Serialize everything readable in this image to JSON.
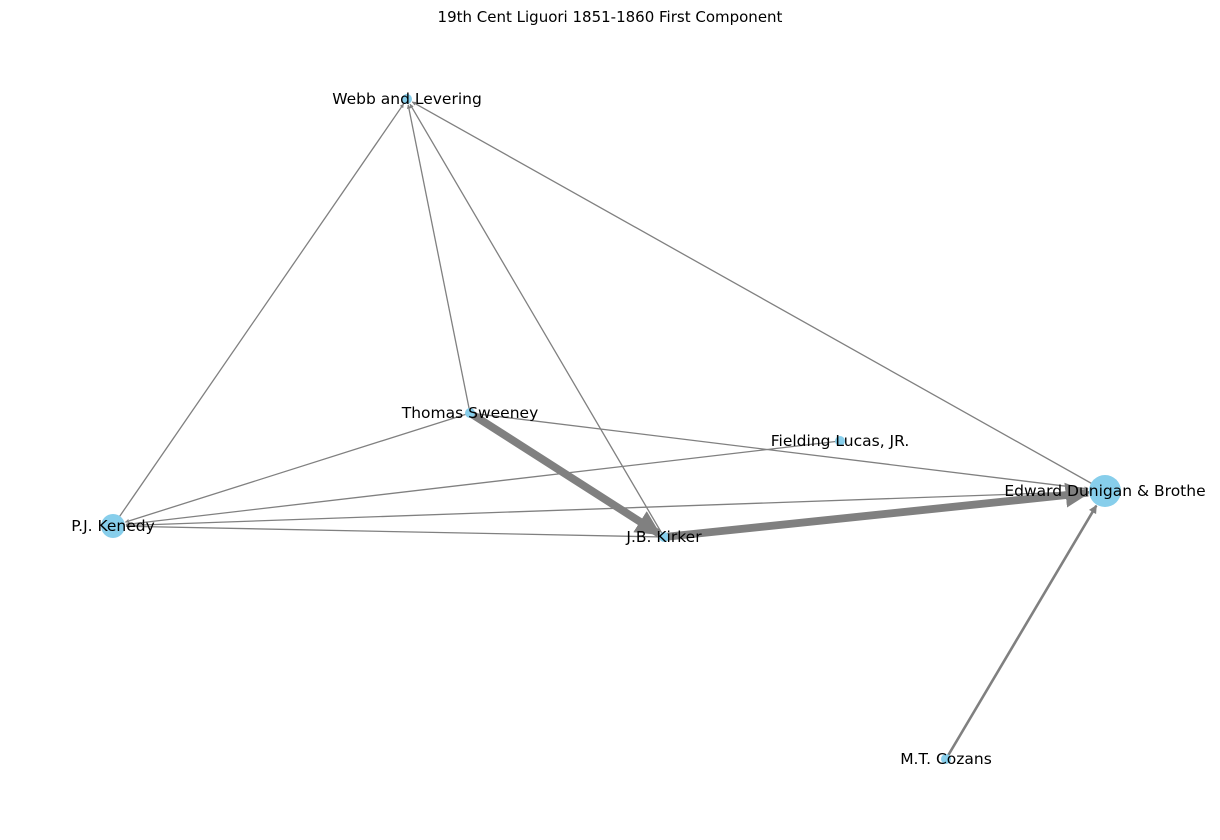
{
  "title": "19th Cent Liguori 1851-1860 First Component",
  "graph": {
    "type": "directed-network",
    "node_color": "#87ceeb",
    "edge_color": "#808080",
    "nodes": [
      {
        "id": "webb",
        "label": "Webb and Levering",
        "size": "small"
      },
      {
        "id": "sweeney",
        "label": "Thomas Sweeney",
        "size": "small"
      },
      {
        "id": "lucas",
        "label": "Fielding Lucas, JR.",
        "size": "small"
      },
      {
        "id": "dunigan",
        "label": "Edward Dunigan & Brothe",
        "size": "large"
      },
      {
        "id": "kenedy",
        "label": "P.J. Kenedy",
        "size": "medium"
      },
      {
        "id": "kirker",
        "label": "J.B. Kirker",
        "size": "small"
      },
      {
        "id": "cozans",
        "label": "M.T. Cozans",
        "size": "small"
      }
    ],
    "edges": [
      {
        "source": "kenedy",
        "target": "webb",
        "weight": 1
      },
      {
        "source": "sweeney",
        "target": "webb",
        "weight": 1
      },
      {
        "source": "kirker",
        "target": "webb",
        "weight": 1
      },
      {
        "source": "dunigan",
        "target": "webb",
        "weight": 1
      },
      {
        "source": "sweeney",
        "target": "kenedy",
        "weight": 1
      },
      {
        "source": "lucas",
        "target": "kenedy",
        "weight": 1
      },
      {
        "source": "dunigan",
        "target": "kenedy",
        "weight": 1
      },
      {
        "source": "kirker",
        "target": "kenedy",
        "weight": 1
      },
      {
        "source": "sweeney",
        "target": "dunigan",
        "weight": 1
      },
      {
        "source": "sweeney",
        "target": "kirker",
        "weight": 6
      },
      {
        "source": "kirker",
        "target": "dunigan",
        "weight": 6
      },
      {
        "source": "cozans",
        "target": "dunigan",
        "weight": 2
      }
    ]
  }
}
